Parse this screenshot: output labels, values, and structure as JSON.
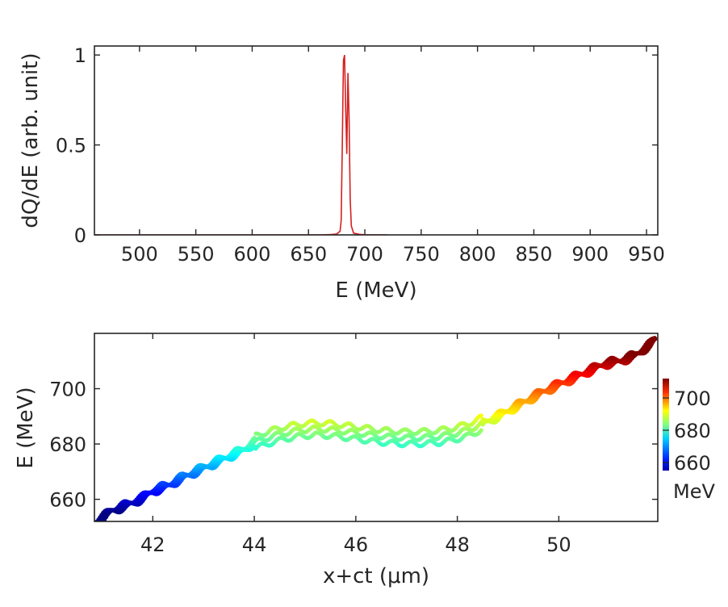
{
  "chart_data": [
    {
      "type": "line",
      "xlabel": "E (MeV)",
      "ylabel": "dQ/dE (arb. unit)",
      "xlim": [
        460,
        960
      ],
      "ylim": [
        0,
        1.05
      ],
      "xticks": [
        "500",
        "550",
        "600",
        "650",
        "700",
        "750",
        "800",
        "850",
        "900",
        "950"
      ],
      "yticks": [
        "0",
        "0.5",
        "1"
      ],
      "color": "#d42020",
      "series": [
        {
          "x": [
            460,
            660,
            670,
            675,
            678,
            679,
            680,
            681,
            682,
            683,
            684,
            685,
            686,
            687,
            688,
            690,
            695,
            700,
            720
          ],
          "y": [
            0,
            0,
            0.002,
            0.005,
            0.02,
            0.08,
            0.5,
            0.97,
            1.0,
            0.7,
            0.45,
            0.9,
            0.65,
            0.2,
            0.05,
            0.01,
            0.003,
            0.001,
            0
          ]
        }
      ]
    },
    {
      "type": "scatter",
      "xlabel": "x+ct (μm)",
      "ylabel": "E (MeV)",
      "xlim": [
        40.85,
        51.95
      ],
      "ylim": [
        652,
        720
      ],
      "xticks": [
        "42",
        "44",
        "46",
        "48",
        "50"
      ],
      "yticks": [
        "660",
        "680",
        "700"
      ],
      "colorbar": {
        "label": "MeV",
        "ticks": [
          "660",
          "680",
          "700"
        ],
        "range": [
          655,
          712
        ],
        "colormap": "jet"
      },
      "series": [
        {
          "x": [
            40.9,
            41.2,
            41.5,
            41.8,
            42.0,
            42.3,
            42.6,
            42.9,
            43.2,
            43.5,
            43.8,
            44.0,
            44.3,
            44.6,
            44.9,
            45.2,
            45.5,
            45.8,
            46.1,
            46.4,
            46.7,
            47.0,
            47.3,
            47.6,
            47.9,
            48.2,
            48.5,
            48.8,
            49.1,
            49.4,
            49.7,
            50.0,
            50.3,
            50.6,
            50.9,
            51.2,
            51.5,
            51.8,
            51.9
          ],
          "y": [
            652,
            656,
            658,
            660.5,
            663,
            665,
            668,
            670.5,
            673,
            675.5,
            678,
            680.5,
            682.5,
            684,
            685,
            685.5,
            685.2,
            684.5,
            683.8,
            683,
            682.5,
            682.2,
            682.3,
            682.6,
            683.5,
            685,
            687.5,
            690,
            693,
            696,
            699,
            701.5,
            704,
            706.5,
            709,
            710,
            712,
            716,
            718
          ]
        }
      ]
    }
  ]
}
